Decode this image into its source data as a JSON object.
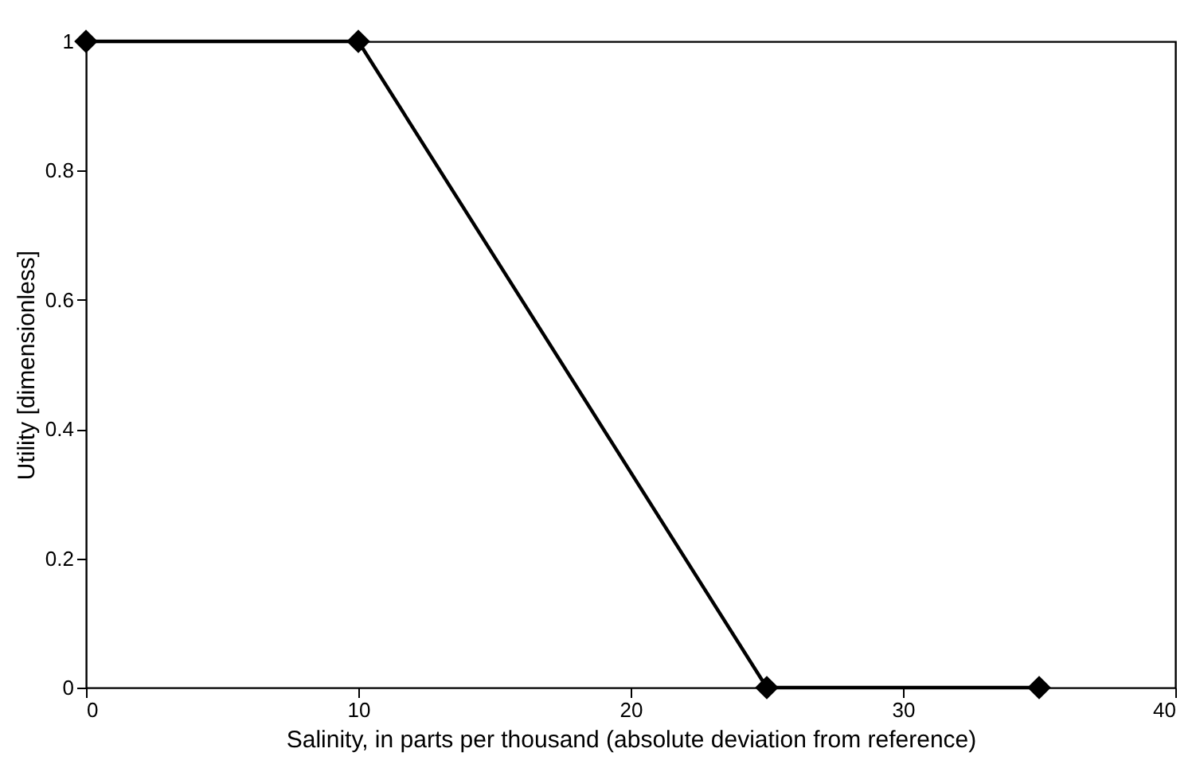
{
  "chart_data": {
    "type": "line",
    "xlabel": "Salinity, in parts per thousand (absolute deviation from reference)",
    "ylabel": "Utility [dimensionless]",
    "x": [
      0,
      10,
      25,
      35
    ],
    "series": [
      {
        "color": "#000000",
        "values": [
          1,
          1,
          0,
          0
        ]
      }
    ],
    "xlim": [
      0,
      40
    ],
    "xticks": [
      0,
      10,
      20,
      30,
      40
    ],
    "ylim": [
      0,
      1
    ],
    "yticks": [
      0,
      0.2,
      0.4,
      0.6,
      0.8,
      1
    ],
    "grid": false,
    "marker": "diamond",
    "line_style": "solid"
  }
}
